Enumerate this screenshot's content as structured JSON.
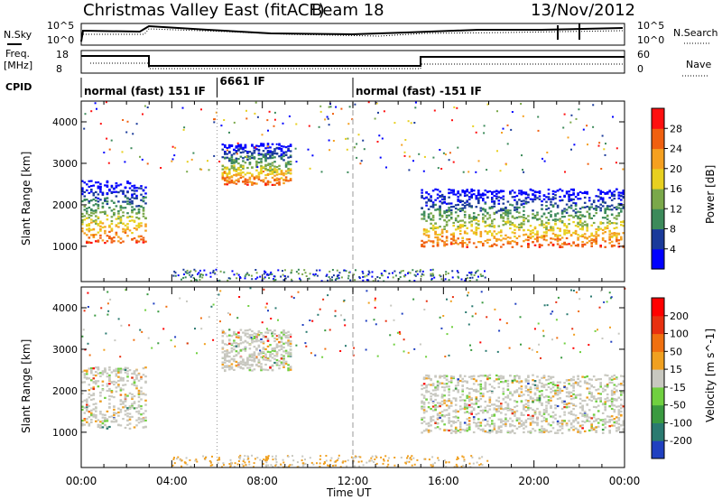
{
  "header": {
    "title": "Christmas Valley East (fitACF)",
    "beam": "Beam 18",
    "date": "13/Nov/2012"
  },
  "aux_panels": {
    "nsky_label": "N.Sky",
    "nsky_ticks": [
      "10^5",
      "10^0"
    ],
    "nsearch_label": "N.Search",
    "nsearch_ticks": [
      "10^5",
      "10^0"
    ],
    "freq_label": "Freq.",
    "freq_unit": "[MHz]",
    "freq_ticks": [
      "18",
      "8"
    ],
    "nave_label": "Nave",
    "nave_ticks": [
      "60",
      "0"
    ],
    "cpid_label": "CPID",
    "cpid_segments": [
      {
        "label": "normal (fast) 151 IF",
        "start_hour": 0,
        "end_hour": 6
      },
      {
        "label": "6661 IF",
        "start_hour": 6,
        "end_hour": 12
      },
      {
        "label": "normal (fast) -151 IF",
        "start_hour": 12,
        "end_hour": 24
      }
    ]
  },
  "chart_data": [
    {
      "type": "heatmap",
      "name": "power-panel",
      "ylabel": "Slant Range [km]",
      "xlim_hours": [
        0,
        24
      ],
      "ylim_km": [
        150,
        4500
      ],
      "yticks": [
        "4000",
        "3000",
        "2000",
        "1000"
      ],
      "colorbar": {
        "label": "Power [dB]",
        "ticks": [
          "28",
          "24",
          "20",
          "16",
          "12",
          "8",
          "4"
        ],
        "colors": [
          "#0000ff",
          "#1a3a9a",
          "#3c8a5a",
          "#7aa84a",
          "#e8d020",
          "#f5a020",
          "#f06010",
          "#ff1010"
        ]
      },
      "features": [
        {
          "desc": "echo band",
          "start_hour": 0.0,
          "end_hour": 2.9,
          "range_km": [
            1100,
            2600
          ]
        },
        {
          "desc": "echo band",
          "start_hour": 6.2,
          "end_hour": 9.3,
          "range_km": [
            2500,
            3500
          ]
        },
        {
          "desc": "echo band",
          "start_hour": 15.0,
          "end_hour": 24.0,
          "range_km": [
            1000,
            2400
          ]
        }
      ]
    },
    {
      "type": "heatmap",
      "name": "velocity-panel",
      "ylabel": "Slant Range [km]",
      "xlabel": "Time UT",
      "xlim_hours": [
        0,
        24
      ],
      "xticks": [
        "00:00",
        "04:00",
        "08:00",
        "12:00",
        "16:00",
        "20:00",
        "00:00"
      ],
      "ylim_km": [
        150,
        4500
      ],
      "yticks": [
        "4000",
        "3000",
        "2000",
        "1000"
      ],
      "colorbar": {
        "label": "Velocity [m s^-1]",
        "ticks": [
          "200",
          "100",
          "50",
          "15",
          "-15",
          "-50",
          "-100",
          "-200"
        ],
        "colors": [
          "#2040c0",
          "#2a7a70",
          "#3a9a40",
          "#70d040",
          "#c8c8c0",
          "#f0a020",
          "#f07010",
          "#e83010",
          "#ff0000"
        ]
      }
    }
  ]
}
